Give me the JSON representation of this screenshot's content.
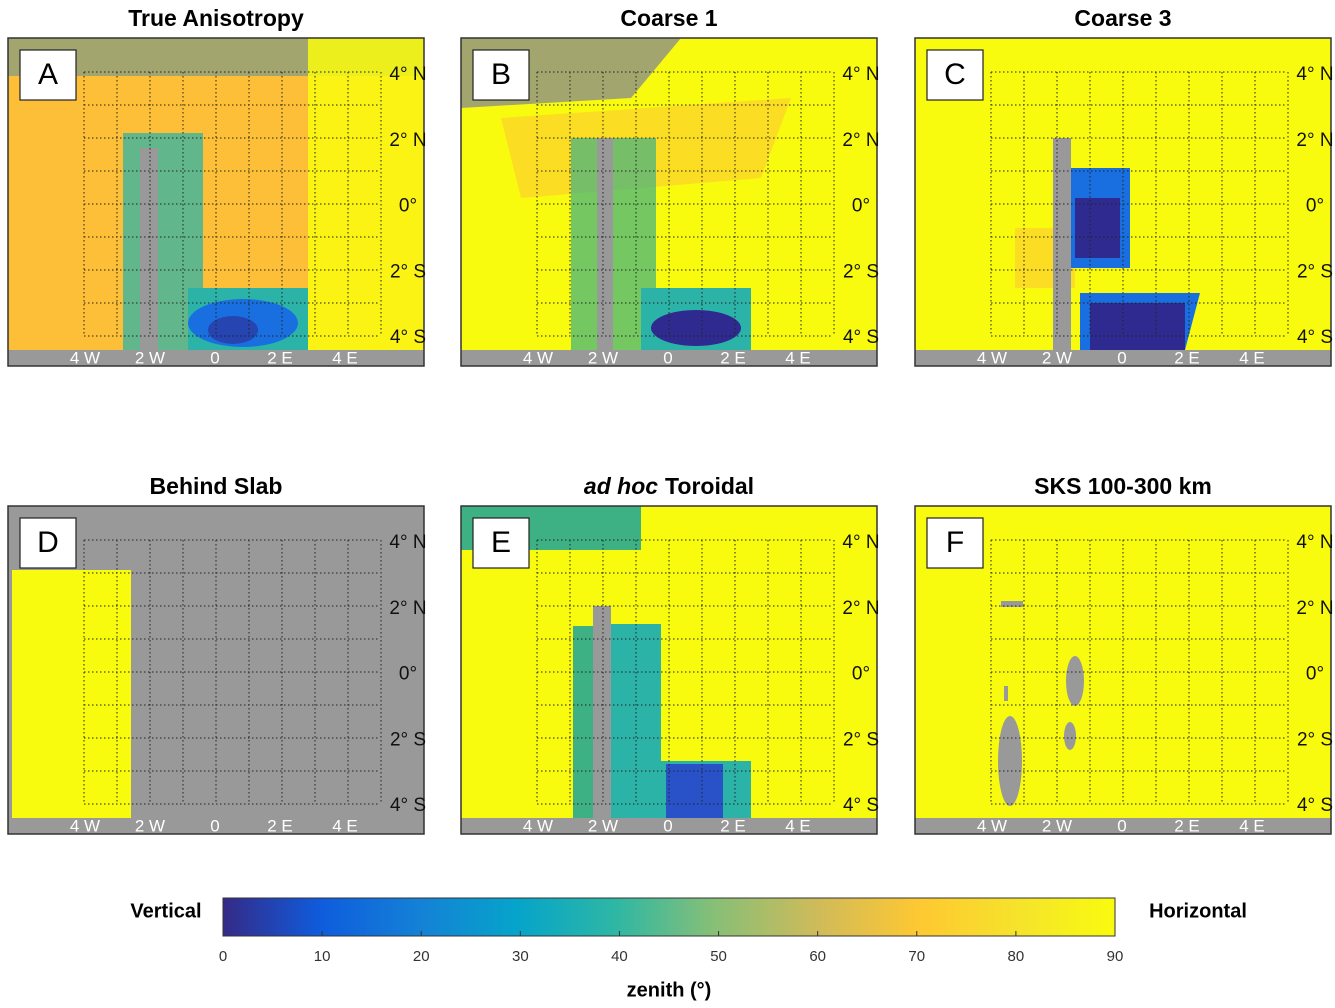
{
  "panels": [
    {
      "title": "True Anisotropy",
      "letter": "A"
    },
    {
      "title": "Coarse 1",
      "letter": "B"
    },
    {
      "title": "Coarse 3",
      "letter": "C"
    },
    {
      "title": "Behind Slab",
      "letter": "D"
    },
    {
      "title_italic": "ad hoc",
      "title": "Toroidal",
      "letter": "E"
    },
    {
      "title": "SKS 100-300 km",
      "letter": "F"
    }
  ],
  "lat_labels": [
    "4° N",
    "2° N",
    "0°",
    "2° S",
    "4° S"
  ],
  "lon_labels": [
    "4 W",
    "2 W",
    "0",
    "2 E",
    "4 E"
  ],
  "colorbar": {
    "lim": [
      0,
      90
    ],
    "ticks": [
      0,
      10,
      20,
      30,
      40,
      50,
      60,
      70,
      80,
      90
    ],
    "label": "zenith (°)",
    "left": "Vertical",
    "right": "Horizontal"
  }
}
